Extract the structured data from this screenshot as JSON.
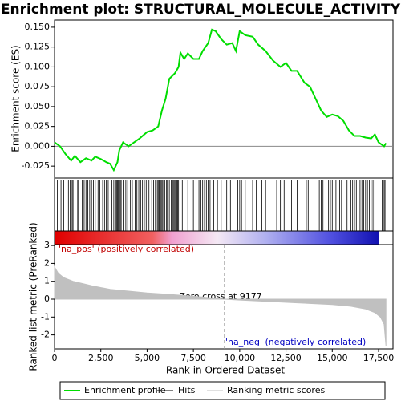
{
  "chart_data": [
    {
      "type": "line",
      "title": "Enrichment plot: STRUCTURAL_MOLECULE_ACTIVITY",
      "y_label": "Enrichment score (ES)",
      "xlim": [
        0,
        18280
      ],
      "ylim": [
        -0.04,
        0.159
      ],
      "yticks": [
        -0.025,
        {
          "value": 0,
          "label": "0.000"
        },
        0.025,
        {
          "value": 0.05,
          "label": "0.050"
        },
        0.075,
        {
          "value": 0.1,
          "label": "0.100"
        },
        0.125,
        {
          "value": 0.15,
          "label": "0.150"
        }
      ],
      "series": [
        {
          "name": "Enrichment profile",
          "color": "#00dd00",
          "x": [
            0,
            300,
            600,
            900,
            1100,
            1400,
            1700,
            2000,
            2200,
            2500,
            2800,
            3000,
            3200,
            3400,
            3500,
            3700,
            4000,
            4300,
            4600,
            5000,
            5300,
            5600,
            5800,
            6000,
            6200,
            6500,
            6700,
            6800,
            7000,
            7200,
            7500,
            7800,
            8000,
            8300,
            8500,
            8700,
            9000,
            9300,
            9600,
            9800,
            10000,
            10300,
            10700,
            11000,
            11400,
            11800,
            12200,
            12500,
            12800,
            13100,
            13500,
            13800,
            14100,
            14400,
            14700,
            15000,
            15300,
            15600,
            15900,
            16200,
            16500,
            16800,
            17100,
            17300,
            17500,
            17800,
            17900
          ],
          "values": [
            0.005,
            0.0,
            -0.01,
            -0.018,
            -0.012,
            -0.02,
            -0.015,
            -0.018,
            -0.013,
            -0.016,
            -0.02,
            -0.022,
            -0.03,
            -0.02,
            -0.005,
            0.005,
            0.0,
            0.005,
            0.01,
            0.018,
            0.02,
            0.025,
            0.045,
            0.06,
            0.085,
            0.092,
            0.1,
            0.118,
            0.11,
            0.117,
            0.11,
            0.11,
            0.12,
            0.13,
            0.147,
            0.145,
            0.135,
            0.128,
            0.13,
            0.12,
            0.145,
            0.14,
            0.138,
            0.128,
            0.12,
            0.108,
            0.1,
            0.105,
            0.095,
            0.095,
            0.08,
            0.075,
            0.06,
            0.045,
            0.037,
            0.04,
            0.038,
            0.032,
            0.02,
            0.013,
            0.013,
            0.011,
            0.01,
            0.015,
            0.005,
            0.0,
            0.004
          ]
        }
      ]
    },
    {
      "type": "rug",
      "xlim": [
        0,
        18280
      ],
      "series": [
        {
          "name": "Hits",
          "color": "#000000",
          "x": [
            20,
            150,
            350,
            500,
            750,
            850,
            950,
            1000,
            1100,
            1250,
            1300,
            1500,
            1600,
            1700,
            1800,
            1900,
            2000,
            2100,
            2200,
            2350,
            2450,
            2600,
            2700,
            2800,
            2900,
            3100,
            3200,
            3300,
            3350,
            3400,
            3450,
            3500,
            3550,
            3600,
            3700,
            3850,
            3950,
            4100,
            4200,
            4350,
            4450,
            4550,
            4650,
            4750,
            4850,
            4950,
            5100,
            5250,
            5350,
            5450,
            5550,
            5600,
            5650,
            5700,
            5750,
            5800,
            5850,
            5950,
            6050,
            6100,
            6200,
            6300,
            6400,
            6450,
            6500,
            6550,
            6600,
            6650,
            6700,
            6900,
            7000,
            7200,
            7500,
            7650,
            7800,
            7900,
            8000,
            8100,
            8200,
            8300,
            8400,
            8600,
            8800,
            9000,
            9300,
            9500,
            9900,
            10000,
            10100,
            10300,
            10500,
            10700,
            10900,
            11200,
            11400,
            11800,
            12000,
            12200,
            12400,
            12800,
            13100,
            13600,
            13700,
            14300,
            14400,
            14500,
            14800,
            14900,
            15000,
            15100,
            15200,
            15400,
            15500,
            15800,
            16000,
            16100,
            16200,
            16300,
            16500,
            16600,
            16700,
            16800,
            16900,
            17000,
            17100,
            17200,
            17300,
            17700,
            17800,
            17850
          ]
        }
      ]
    },
    {
      "type": "area",
      "x_label": "Rank in Ordered Dataset",
      "y_label": "Ranked list metric (PreRanked)",
      "xlim": [
        0,
        18280
      ],
      "ylim": [
        -2.78,
        3.05
      ],
      "xticks": [
        0,
        {
          "value": 2500,
          "label": "2,500"
        },
        {
          "value": 5000,
          "label": "5,000"
        },
        {
          "value": 7500,
          "label": "7,500"
        },
        {
          "value": 10000,
          "label": "10,000"
        },
        {
          "value": 12500,
          "label": "12,500"
        },
        {
          "value": 15000,
          "label": "15,000"
        },
        {
          "value": 17500,
          "label": "17,500"
        }
      ],
      "yticks": [
        -2,
        -1,
        0,
        1,
        2,
        3
      ],
      "annotations": [
        "'na_pos' (positively correlated)",
        "Zero cross at 9177",
        "'na_neg' (negatively correlated)"
      ],
      "zero_cross": 9177,
      "series": [
        {
          "name": "Ranking metric scores",
          "color": "#c0c0c0",
          "x": [
            0,
            200,
            500,
            1000,
            2000,
            3000,
            4000,
            5000,
            6000,
            7000,
            8000,
            9177,
            10000,
            11000,
            12000,
            13000,
            14000,
            15000,
            16000,
            16800,
            17300,
            17600,
            17800,
            17900
          ],
          "values": [
            1.8,
            1.45,
            1.2,
            1.0,
            0.75,
            0.55,
            0.45,
            0.35,
            0.28,
            0.2,
            0.12,
            0,
            -0.05,
            -0.1,
            -0.15,
            -0.2,
            -0.25,
            -0.3,
            -0.4,
            -0.55,
            -0.75,
            -1.0,
            -1.4,
            -2.6
          ]
        }
      ]
    }
  ]
}
